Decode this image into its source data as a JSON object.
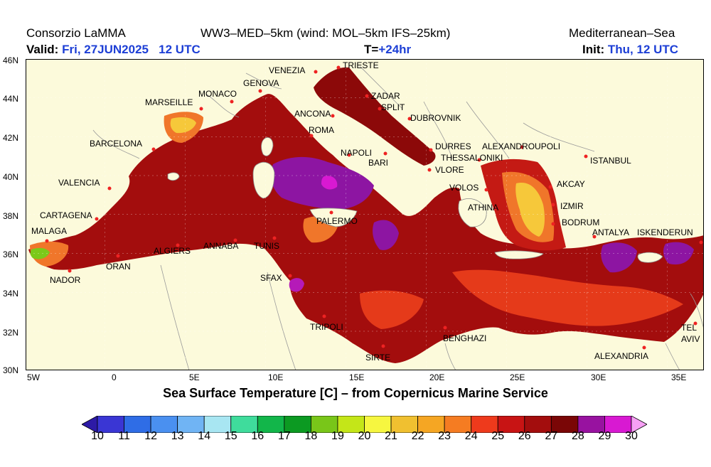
{
  "header": {
    "org": "Consorzio LaMMA",
    "model": "WW3–MED–5km (wind: MOL–5km IFS–25km)",
    "region": "Mediterranean–Sea",
    "valid_label": "Valid:",
    "valid_value": "Fri, 27JUN2025",
    "valid_time": "12 UTC",
    "lead_label": "T=",
    "lead_value": "+24hr",
    "init_label": "Init:",
    "init_value": "Thu, 12 UTC"
  },
  "title": "Sea Surface Temperature [C] – from Copernicus Marine Service",
  "axes": {
    "lat_ticks": [
      "46N",
      "44N",
      "42N",
      "40N",
      "38N",
      "36N",
      "34N",
      "32N",
      "30N"
    ],
    "lon_ticks": [
      "5W",
      "0",
      "5E",
      "10E",
      "15E",
      "20E",
      "25E",
      "30E",
      "35E"
    ]
  },
  "colorbar": {
    "labels": [
      "10",
      "11",
      "12",
      "13",
      "14",
      "15",
      "16",
      "17",
      "18",
      "19",
      "20",
      "21",
      "22",
      "23",
      "24",
      "25",
      "26",
      "27",
      "28",
      "29",
      "30"
    ],
    "colors": [
      "#2d1aa6",
      "#3a36d4",
      "#2f6de6",
      "#4a90f0",
      "#70b4f4",
      "#a8e6f2",
      "#3fdc9c",
      "#12b64a",
      "#0c9a22",
      "#79c619",
      "#c4e618",
      "#f6f640",
      "#f0c030",
      "#f5a623",
      "#f57c22",
      "#ee3a1c",
      "#c81414",
      "#a30d0d",
      "#7a0606",
      "#9812a0",
      "#d819d2",
      "#f7a0f5"
    ]
  },
  "colors": {
    "land": "#fcfadb",
    "sea_warm": "#8c0909",
    "sea_mid": "#c41a14",
    "sea_orange": "#f0762a",
    "sea_yellow": "#f6c83a",
    "sea_purple": "#8d15a2",
    "blue_text": "#1d3fd6"
  },
  "cities": [
    {
      "name": "VENEZIA"
    },
    {
      "name": "TRIESTE"
    },
    {
      "name": "GENOVA"
    },
    {
      "name": "MONACO"
    },
    {
      "name": "MARSEILLE"
    },
    {
      "name": "ZADAR"
    },
    {
      "name": "SPLIT"
    },
    {
      "name": "ANCONA"
    },
    {
      "name": "DUBROVNIK"
    },
    {
      "name": "ROMA"
    },
    {
      "name": "BARCELONA"
    },
    {
      "name": "DURRES"
    },
    {
      "name": "ALEXANDROUPOLI"
    },
    {
      "name": "NAPOLI"
    },
    {
      "name": "THESSALONIKI"
    },
    {
      "name": "ISTANBUL"
    },
    {
      "name": "BARI"
    },
    {
      "name": "VLORE"
    },
    {
      "name": "VALENCIA"
    },
    {
      "name": "VOLOS"
    },
    {
      "name": "AKCAY"
    },
    {
      "name": "ATHINA"
    },
    {
      "name": "IZMIR"
    },
    {
      "name": "CARTAGENA"
    },
    {
      "name": "PALERMO"
    },
    {
      "name": "BODRUM"
    },
    {
      "name": "MALAGA"
    },
    {
      "name": "ANTALYA"
    },
    {
      "name": "ISKENDERUN"
    },
    {
      "name": "ALGIERS"
    },
    {
      "name": "ANNABA"
    },
    {
      "name": "TUNIS"
    },
    {
      "name": "ORAN"
    },
    {
      "name": "NADOR"
    },
    {
      "name": "SFAX"
    },
    {
      "name": "TRIPOLI"
    },
    {
      "name": "BENGHAZI"
    },
    {
      "name": "TEL"
    },
    {
      "name": "AVIV"
    },
    {
      "name": "SIRTE"
    },
    {
      "name": "ALEXANDRIA"
    }
  ]
}
